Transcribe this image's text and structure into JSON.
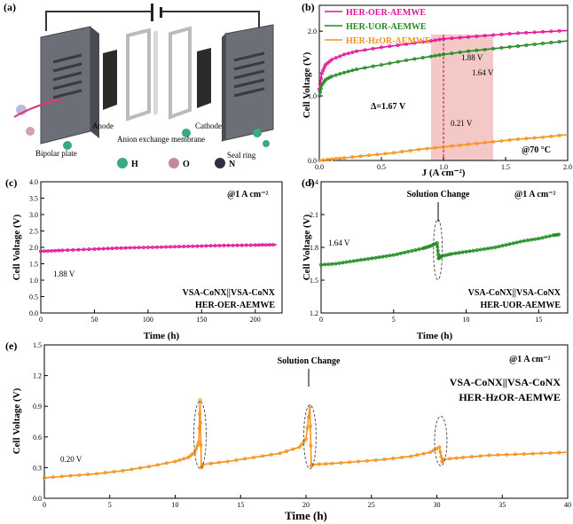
{
  "panel_labels": {
    "a": "(a)",
    "b": "(b)",
    "c": "(c)",
    "d": "(d)",
    "e": "(e)"
  },
  "colors": {
    "oer": "#e2149a",
    "uor": "#1f8a21",
    "hzor": "#f5921e",
    "highlight": "#f2b5b5"
  },
  "schematic": {
    "anode": "Anode",
    "cathode": "Cathode",
    "membrane": "Anion exchange membrane",
    "bipolar_plate": "Bipolar plate",
    "seal_ring": "Seal ring",
    "legend": [
      {
        "symbol": "H",
        "color": "#3aaa7e"
      },
      {
        "symbol": "O",
        "color": "#c48a9a"
      },
      {
        "symbol": "N",
        "color": "#2e2f45"
      }
    ]
  },
  "chart_data": [
    {
      "id": "b",
      "type": "line",
      "ylabel": "Cell Voltage (V)",
      "xlabel": "J (A cm⁻²)",
      "xlim": [
        0,
        2.0
      ],
      "ylim": [
        0,
        2.4
      ],
      "xticks": [
        "0.0",
        "0.5",
        "1.0",
        "1.5",
        "2.0"
      ],
      "yticks": [
        "0.0",
        "1.0",
        "2.0"
      ],
      "series": [
        {
          "name": "HER-OER-AEMWE",
          "x": [
            0,
            0.02,
            0.05,
            0.1,
            0.2,
            0.3,
            0.5,
            0.7,
            0.9,
            1.0,
            1.2,
            1.4,
            1.6,
            1.8,
            2.0
          ],
          "y": [
            1.1,
            1.35,
            1.48,
            1.56,
            1.64,
            1.69,
            1.75,
            1.8,
            1.85,
            1.88,
            1.91,
            1.94,
            1.97,
            1.99,
            2.01
          ]
        },
        {
          "name": "HER-UOR-AEMWE",
          "x": [
            0,
            0.02,
            0.05,
            0.1,
            0.2,
            0.3,
            0.5,
            0.7,
            0.9,
            1.0,
            1.2,
            1.4,
            1.6,
            1.8,
            2.0
          ],
          "y": [
            1.0,
            1.17,
            1.25,
            1.3,
            1.36,
            1.41,
            1.48,
            1.55,
            1.61,
            1.64,
            1.69,
            1.73,
            1.77,
            1.81,
            1.85
          ]
        },
        {
          "name": "HER-HzOR-AEMWE",
          "x": [
            0,
            0.1,
            0.2,
            0.4,
            0.6,
            0.8,
            1.0,
            1.2,
            1.4,
            1.6,
            1.8,
            2.0
          ],
          "y": [
            0.0,
            0.02,
            0.04,
            0.08,
            0.12,
            0.17,
            0.21,
            0.25,
            0.29,
            0.33,
            0.36,
            0.4
          ]
        }
      ],
      "annotations": {
        "oer_label": "1.88 V",
        "uor_label": "1.64 V",
        "hzor_label": "0.21 V",
        "delta": "Δ=1.67 V",
        "temp": "@70 °C"
      },
      "highlight_x": [
        0.9,
        1.4
      ]
    },
    {
      "id": "c",
      "type": "line",
      "ylabel": "Cell Voltage (V)",
      "xlabel": "Time (h)",
      "xlim": [
        0,
        225
      ],
      "ylim": [
        0,
        4.0
      ],
      "xticks": [
        "0",
        "50",
        "100",
        "150",
        "200"
      ],
      "yticks": [
        "0.0",
        "0.5",
        "1.0",
        "1.5",
        "2.0",
        "2.5",
        "3.0",
        "3.5",
        "4.0"
      ],
      "series": [
        {
          "name": "HER-OER-AEMWE",
          "x": [
            0,
            20,
            50,
            75,
            100,
            125,
            150,
            175,
            200,
            220
          ],
          "y": [
            1.88,
            1.91,
            1.95,
            1.98,
            2.0,
            2.02,
            2.04,
            2.06,
            2.07,
            2.08
          ]
        }
      ],
      "annotations": {
        "start": "1.88 V",
        "cond": "@1 A cm⁻²",
        "catalyst_top": "V",
        "catalyst_full": "VSA-CoNX||VSA-CoNX",
        "label": "HER-OER-AEMWE"
      }
    },
    {
      "id": "d",
      "type": "line",
      "ylabel": "Cell Voltage (V)",
      "xlabel": "Time (h)",
      "xlim": [
        0,
        17
      ],
      "ylim": [
        1.2,
        2.4
      ],
      "xticks": [
        "0",
        "5",
        "10",
        "15"
      ],
      "yticks": [
        "1.2",
        "1.5",
        "1.8",
        "2.1",
        "2.4"
      ],
      "series": [
        {
          "name": "HER-UOR-AEMWE",
          "x": [
            0,
            1,
            2,
            3,
            4,
            5,
            6,
            7,
            7.5,
            8,
            8.1,
            8.3,
            9,
            10,
            11,
            12,
            13,
            14,
            15,
            16,
            16.5
          ],
          "y": [
            1.64,
            1.65,
            1.67,
            1.69,
            1.71,
            1.73,
            1.76,
            1.79,
            1.81,
            1.84,
            1.7,
            1.72,
            1.74,
            1.76,
            1.78,
            1.8,
            1.83,
            1.86,
            1.88,
            1.91,
            1.92
          ]
        }
      ],
      "annotations": {
        "start": "1.64 V",
        "cond": "@1 A cm⁻²",
        "change": "Solution Change",
        "catalyst_full": "VSA-CoNX||VSA-CoNX",
        "label": "HER-UOR-AEMWE"
      }
    },
    {
      "id": "e",
      "type": "line",
      "ylabel": "Cell Voltage (V)",
      "xlabel": "Time (h)",
      "xlim": [
        0,
        40
      ],
      "ylim": [
        0,
        1.5
      ],
      "xticks": [
        "0",
        "5",
        "10",
        "15",
        "20",
        "25",
        "30",
        "35",
        "40"
      ],
      "yticks": [
        "0.0",
        "0.3",
        "0.6",
        "0.9",
        "1.2",
        "1.5"
      ],
      "series": [
        {
          "name": "HER-HzOR-AEMWE",
          "x": [
            0,
            2,
            4,
            6,
            8,
            10,
            11,
            11.5,
            11.8,
            11.9,
            12.0,
            12.1,
            14,
            16,
            18,
            19.5,
            20.0,
            20.3,
            20.4,
            20.5,
            22,
            24,
            26,
            28,
            29.5,
            30.2,
            30.4,
            30.5,
            32,
            34,
            36,
            38,
            40
          ],
          "y": [
            0.2,
            0.22,
            0.24,
            0.27,
            0.31,
            0.36,
            0.4,
            0.45,
            0.55,
            0.96,
            0.3,
            0.33,
            0.36,
            0.4,
            0.44,
            0.5,
            0.58,
            0.9,
            0.32,
            0.33,
            0.34,
            0.36,
            0.38,
            0.41,
            0.45,
            0.5,
            0.36,
            0.38,
            0.4,
            0.42,
            0.43,
            0.44,
            0.45
          ]
        }
      ],
      "annotations": {
        "start": "0.20 V",
        "cond": "@1 A cm⁻²",
        "change": "Solution Change",
        "catalyst_full": "VSA-CoNX||VSA-CoNX",
        "label": "HER-HzOR-AEMWE"
      }
    }
  ]
}
